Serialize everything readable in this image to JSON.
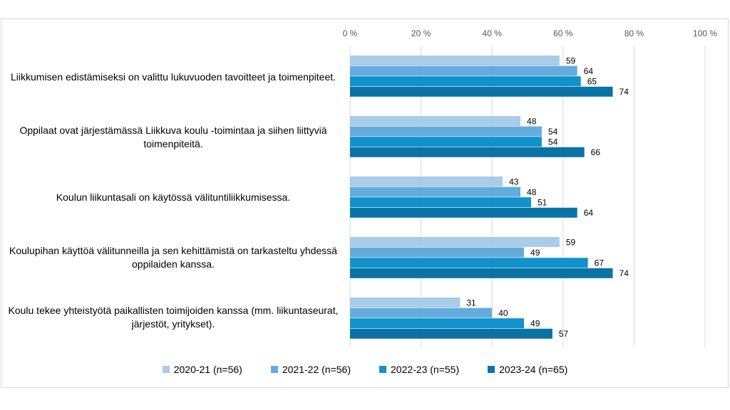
{
  "chart_data": {
    "type": "bar",
    "orientation": "horizontal",
    "categories": [
      "Liikkumisen edistämiseksi on valittu lukuvuoden tavoitteet ja toimenpiteet.",
      "Oppilaat ovat järjestämässä Liikkuva koulu -toimintaa ja siihen liittyviä toimenpiteitä.",
      "Koulun liikuntasali on käytössä välituntiliikkumisessa.",
      "Koulupihan käyttöä välitunneilla ja sen kehittämistä on tarkasteltu yhdessä oppilaiden kanssa.",
      "Koulu tekee yhteistyötä paikallisten toimijoiden kanssa (mm. liikuntaseurat, järjestöt, yritykset)."
    ],
    "series": [
      {
        "name": "2020-21 (n=56)",
        "color": "#a9cce8",
        "values": [
          59,
          48,
          43,
          59,
          31
        ]
      },
      {
        "name": "2021-22 (n=56)",
        "color": "#64acdd",
        "values": [
          64,
          54,
          48,
          49,
          40
        ]
      },
      {
        "name": "2022-23 (n=55)",
        "color": "#1192cc",
        "values": [
          65,
          54,
          51,
          67,
          49
        ]
      },
      {
        "name": "2023-24 (n=65)",
        "color": "#0a73a5",
        "values": [
          74,
          66,
          64,
          74,
          57
        ]
      }
    ],
    "xlim": [
      0,
      100
    ],
    "ticks": [
      "0 %",
      "20 %",
      "40 %",
      "60 %",
      "80 %",
      "100 %"
    ],
    "tick_values": [
      0,
      20,
      40,
      60,
      80,
      100
    ],
    "grid": true,
    "legend_position": "bottom"
  }
}
